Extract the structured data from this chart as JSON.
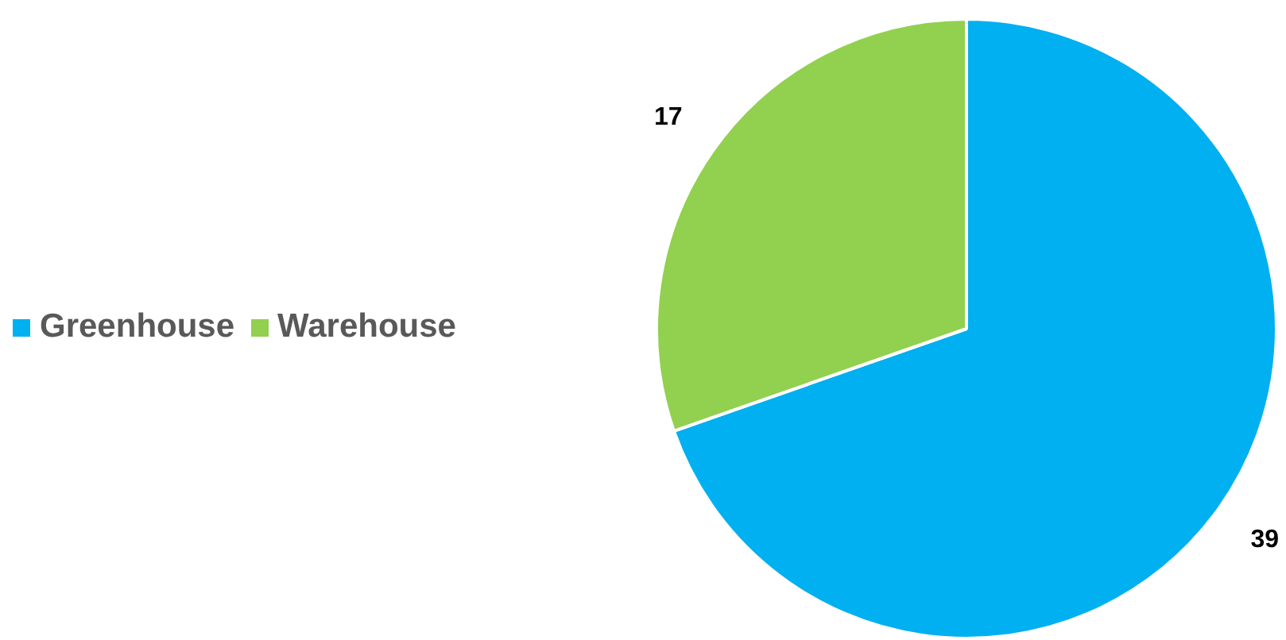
{
  "chart_data": {
    "type": "pie",
    "categories": [
      "Greenhouse",
      "Warehouse"
    ],
    "values": [
      39,
      17
    ],
    "colors": [
      "#00b0f0",
      "#92d050"
    ],
    "legend": "left",
    "data_labels": true
  }
}
